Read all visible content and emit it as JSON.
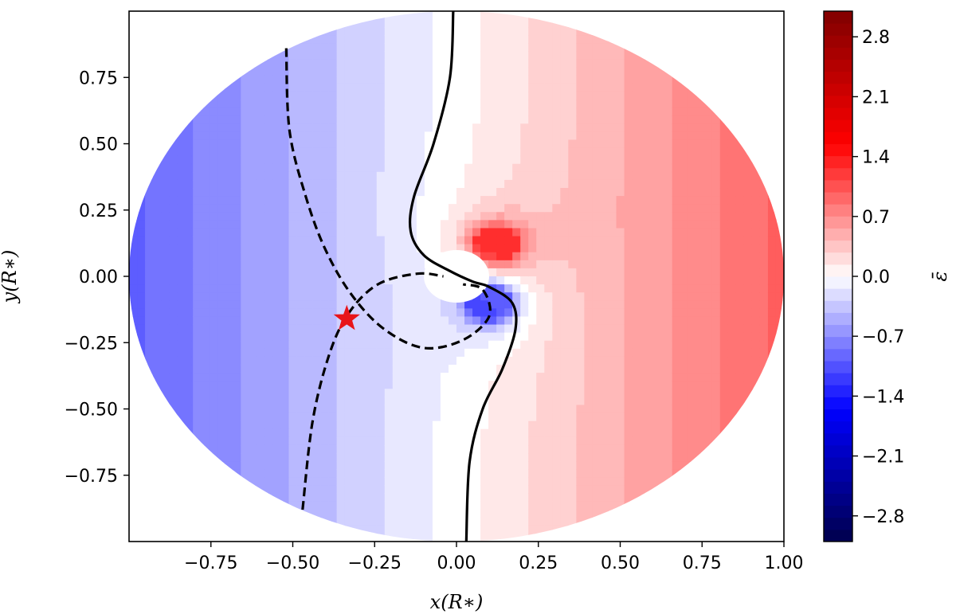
{
  "chart_data": {
    "type": "heatmap",
    "title": "",
    "xlabel": "x(R∗)",
    "ylabel": "y(R∗)",
    "xlim": [
      -1.0,
      1.0
    ],
    "ylim": [
      -1.0,
      1.0
    ],
    "x_ticks": [
      -0.75,
      -0.5,
      -0.25,
      0.0,
      0.25,
      0.5,
      0.75,
      1.0
    ],
    "x_tick_labels": [
      "−0.75",
      "−0.50",
      "−0.25",
      "0.00",
      "0.25",
      "0.50",
      "0.75",
      "1.00"
    ],
    "y_ticks": [
      0.75,
      0.5,
      0.25,
      0.0,
      -0.25,
      -0.5,
      -0.75
    ],
    "y_tick_labels": [
      "0.75",
      "0.50",
      "0.25",
      "0.00",
      "−0.25",
      "−0.50",
      "−0.75"
    ],
    "grid": false,
    "colorbar": {
      "label": "ε̄",
      "range": [
        -3.1,
        3.1
      ],
      "colormap": "seismic",
      "ticks": [
        2.8,
        2.1,
        1.4,
        0.7,
        0.0,
        -0.7,
        -1.4,
        -2.1,
        -2.8
      ],
      "tick_labels": [
        "2.8",
        "2.1",
        "1.4",
        "0.7",
        "0.0",
        "−0.7",
        "−1.4",
        "−2.1",
        "−2.8"
      ]
    },
    "field": {
      "domain": "disk",
      "disk_radius": 1.0,
      "hole_center": [
        0.0,
        0.0
      ],
      "hole_radius": 0.09,
      "far_field_slope": 0.62,
      "dipole_strength": 0.02,
      "positive_peak": [
        0.12,
        0.12
      ],
      "negative_peak": [
        0.1,
        -0.1
      ]
    },
    "zero_contour": [
      [
        -0.01,
        1.0
      ],
      [
        -0.02,
        0.75
      ],
      [
        -0.07,
        0.5
      ],
      [
        -0.13,
        0.3
      ],
      [
        -0.14,
        0.17
      ],
      [
        -0.1,
        0.08
      ],
      [
        -0.02,
        0.02
      ],
      [
        0.05,
        -0.02
      ],
      [
        0.1,
        -0.04
      ],
      [
        0.17,
        -0.1
      ],
      [
        0.18,
        -0.2
      ],
      [
        0.14,
        -0.35
      ],
      [
        0.08,
        -0.5
      ],
      [
        0.04,
        -0.7
      ],
      [
        0.03,
        -1.0
      ]
    ],
    "dashed_contours": [
      [
        [
          -0.52,
          0.86
        ],
        [
          -0.51,
          0.55
        ],
        [
          -0.46,
          0.3
        ],
        [
          -0.4,
          0.1
        ],
        [
          -0.32,
          -0.07
        ],
        [
          -0.22,
          -0.2
        ],
        [
          -0.1,
          -0.27
        ],
        [
          0.02,
          -0.24
        ],
        [
          0.1,
          -0.15
        ],
        [
          0.08,
          -0.05
        ],
        [
          0.02,
          -0.03
        ]
      ],
      [
        [
          -0.47,
          -0.88
        ],
        [
          -0.44,
          -0.55
        ],
        [
          -0.39,
          -0.3
        ],
        [
          -0.33,
          -0.14
        ],
        [
          -0.24,
          -0.03
        ],
        [
          -0.12,
          0.01
        ],
        [
          -0.04,
          0.0
        ]
      ]
    ],
    "markers": [
      {
        "symbol": "star",
        "x": -0.335,
        "y": -0.16,
        "color": "#e8141a"
      }
    ]
  }
}
